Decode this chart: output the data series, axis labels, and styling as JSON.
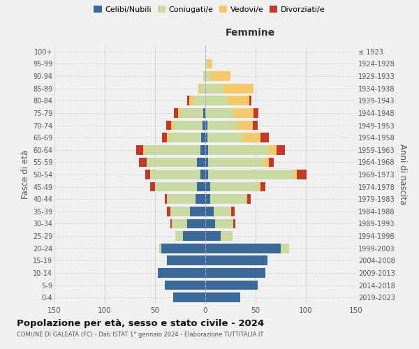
{
  "age_groups": [
    "0-4",
    "5-9",
    "10-14",
    "15-19",
    "20-24",
    "25-29",
    "30-34",
    "35-39",
    "40-44",
    "45-49",
    "50-54",
    "55-59",
    "60-64",
    "65-69",
    "70-74",
    "75-79",
    "80-84",
    "85-89",
    "90-94",
    "95-99",
    "100+"
  ],
  "birth_years": [
    "2019-2023",
    "2014-2018",
    "2009-2013",
    "2004-2008",
    "1999-2003",
    "1994-1998",
    "1989-1993",
    "1984-1988",
    "1979-1983",
    "1974-1978",
    "1969-1973",
    "1964-1968",
    "1959-1963",
    "1954-1958",
    "1949-1953",
    "1944-1948",
    "1939-1943",
    "1934-1938",
    "1929-1933",
    "1924-1928",
    "≤ 1923"
  ],
  "male": {
    "celibi": [
      32,
      40,
      47,
      38,
      44,
      22,
      18,
      15,
      10,
      8,
      5,
      8,
      5,
      4,
      3,
      2,
      0,
      0,
      0,
      0,
      0
    ],
    "coniugati": [
      0,
      0,
      0,
      0,
      2,
      8,
      15,
      20,
      28,
      42,
      50,
      50,
      55,
      32,
      28,
      22,
      12,
      5,
      2,
      0,
      0
    ],
    "vedovi": [
      0,
      0,
      0,
      0,
      0,
      0,
      0,
      0,
      0,
      0,
      0,
      0,
      2,
      2,
      3,
      3,
      4,
      2,
      0,
      0,
      0
    ],
    "divorziati": [
      0,
      0,
      0,
      0,
      0,
      0,
      2,
      3,
      2,
      5,
      5,
      8,
      7,
      5,
      5,
      4,
      2,
      0,
      0,
      0,
      0
    ]
  },
  "female": {
    "nubili": [
      35,
      52,
      60,
      62,
      75,
      15,
      10,
      8,
      5,
      5,
      3,
      3,
      3,
      2,
      2,
      0,
      0,
      0,
      0,
      0,
      0
    ],
    "coniugate": [
      0,
      0,
      0,
      0,
      8,
      12,
      18,
      18,
      35,
      48,
      85,
      55,
      60,
      35,
      30,
      28,
      22,
      18,
      5,
      2,
      0
    ],
    "vedove": [
      0,
      0,
      0,
      0,
      0,
      0,
      0,
      0,
      2,
      2,
      3,
      5,
      8,
      18,
      15,
      20,
      22,
      30,
      20,
      5,
      0
    ],
    "divorziate": [
      0,
      0,
      0,
      0,
      0,
      0,
      2,
      3,
      3,
      5,
      10,
      5,
      8,
      8,
      5,
      5,
      2,
      0,
      0,
      0,
      0
    ]
  },
  "colors": {
    "celibi": "#3a6898",
    "coniugati": "#c8d9a2",
    "vedovi": "#f5c96a",
    "divorziati": "#c0392b"
  },
  "xlim": 150,
  "title": "Popolazione per età, sesso e stato civile - 2024",
  "subtitle": "COMUNE DI GALEATA (FC) - Dati ISTAT 1° gennaio 2024 - Elaborazione TUTTITALIA.IT",
  "ylabel_left": "Fasce di età",
  "ylabel_right": "Anni di nascita",
  "xlabel_right": "Femmine",
  "background_color": "#f0f0f0"
}
